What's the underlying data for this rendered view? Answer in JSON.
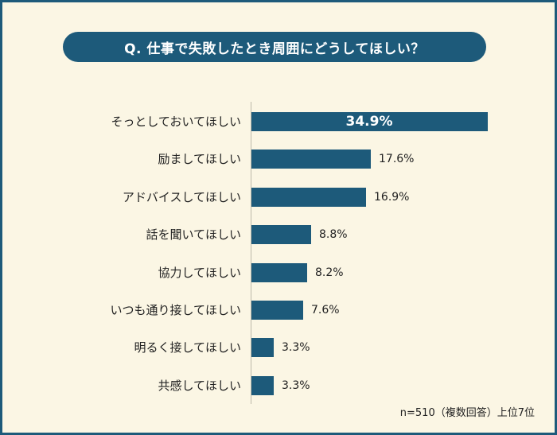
{
  "title": "Q. 仕事で失敗したとき周囲にどうしてほしい？",
  "note": "n=510（複数回答）上位7位",
  "colors": {
    "bar": "#1d5a7a",
    "background": "#fbf6e4",
    "frame": "#1d5a7a"
  },
  "chart_data": {
    "type": "bar",
    "orientation": "horizontal",
    "categories": [
      "そっとしておいてほしい",
      "励ましてほしい",
      "アドバイスしてほしい",
      "話を聞いてほしい",
      "協力してほしい",
      "いつも通り接してほしい",
      "明るく接してほしい",
      "共感してほしい"
    ],
    "values": [
      34.9,
      17.6,
      16.9,
      8.8,
      8.2,
      7.6,
      3.3,
      3.3
    ],
    "value_labels": [
      "34.9%",
      "17.6%",
      "16.9%",
      "8.8%",
      "8.2%",
      "7.6%",
      "3.3%",
      "3.3%"
    ],
    "xlim": [
      0,
      35
    ],
    "grid": false,
    "legend": "none"
  }
}
